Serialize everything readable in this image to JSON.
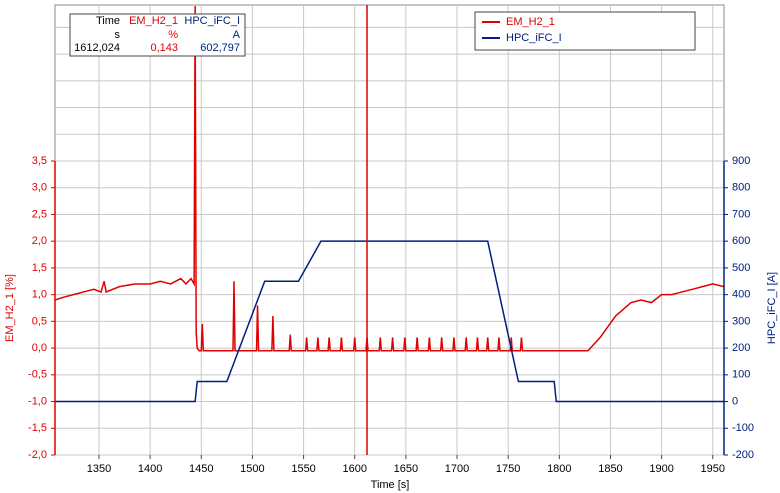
{
  "chart_data": {
    "type": "line",
    "xlabel": "Time [s]",
    "ylabel": "EM_H2_1 [%]",
    "y2label": "HPC_iFC_I [A]",
    "xlim": [
      1307,
      1961
    ],
    "xticks": [
      1350,
      1400,
      1450,
      1500,
      1550,
      1600,
      1650,
      1700,
      1750,
      1800,
      1850,
      1900,
      1950
    ],
    "ylim": [
      -2.0,
      3.5
    ],
    "yticks": [
      {
        "value": 3.5,
        "label": "3,5"
      },
      {
        "value": 3.0,
        "label": "3,0"
      },
      {
        "value": 2.5,
        "label": "2,5"
      },
      {
        "value": 2.0,
        "label": "2,0"
      },
      {
        "value": 1.5,
        "label": "1,5"
      },
      {
        "value": 1.0,
        "label": "1,0"
      },
      {
        "value": 0.5,
        "label": "0,5"
      },
      {
        "value": 0.0,
        "label": "0,0"
      },
      {
        "value": -0.5,
        "label": "-0,5"
      },
      {
        "value": -1.0,
        "label": "-1,0"
      },
      {
        "value": -1.5,
        "label": "-1,5"
      },
      {
        "value": -2.0,
        "label": "-2,0"
      }
    ],
    "y2lim": [
      -200,
      900
    ],
    "y2ticks": [
      900,
      800,
      700,
      600,
      500,
      400,
      300,
      200,
      100,
      0,
      -100,
      -200
    ],
    "grid": true,
    "legend": "upper right",
    "series": [
      {
        "name": "EM_H2_1",
        "color": "#e00000",
        "x": [
          1307,
          1315,
          1325,
          1335,
          1345,
          1352,
          1355,
          1357,
          1370,
          1385,
          1400,
          1410,
          1420,
          1430,
          1435,
          1440,
          1443,
          1444,
          1445,
          1446,
          1448,
          1450,
          1451,
          1452,
          1481,
          1482,
          1483,
          1504,
          1505,
          1506,
          1519,
          1520,
          1521,
          1536,
          1537,
          1538,
          1552,
          1553,
          1554,
          1563,
          1564,
          1565,
          1574,
          1575,
          1576,
          1586,
          1587,
          1588,
          1599,
          1600,
          1601,
          1611,
          1612,
          1613,
          1624,
          1625,
          1626,
          1636,
          1637,
          1638,
          1648,
          1649,
          1650,
          1660,
          1661,
          1662,
          1672,
          1673,
          1674,
          1684,
          1685,
          1686,
          1696,
          1697,
          1698,
          1708,
          1709,
          1710,
          1719,
          1720,
          1721,
          1729,
          1730,
          1731,
          1740,
          1741,
          1742,
          1752,
          1753,
          1754,
          1762,
          1763,
          1764,
          1828,
          1840,
          1855,
          1870,
          1880,
          1890,
          1900,
          1910,
          1920,
          1930,
          1940,
          1950,
          1961
        ],
        "values": [
          0.9,
          0.95,
          1.0,
          1.05,
          1.1,
          1.05,
          1.25,
          1.05,
          1.15,
          1.2,
          1.2,
          1.25,
          1.2,
          1.3,
          1.2,
          1.3,
          1.2,
          6.4,
          0.3,
          0.0,
          -0.05,
          -0.05,
          0.45,
          -0.05,
          -0.05,
          1.25,
          -0.05,
          -0.05,
          0.8,
          -0.05,
          -0.05,
          0.6,
          -0.05,
          -0.05,
          0.25,
          -0.05,
          -0.05,
          0.2,
          -0.05,
          -0.05,
          0.2,
          -0.05,
          -0.05,
          0.2,
          -0.05,
          -0.05,
          0.2,
          -0.05,
          -0.05,
          0.2,
          -0.05,
          -0.05,
          0.2,
          -0.05,
          -0.05,
          0.2,
          -0.05,
          -0.05,
          0.2,
          -0.05,
          -0.05,
          0.2,
          -0.05,
          -0.05,
          0.2,
          -0.05,
          -0.05,
          0.2,
          -0.05,
          -0.05,
          0.2,
          -0.05,
          -0.05,
          0.2,
          -0.05,
          -0.05,
          0.2,
          -0.05,
          -0.05,
          0.2,
          -0.05,
          -0.05,
          0.2,
          -0.05,
          -0.05,
          0.2,
          -0.05,
          -0.05,
          0.2,
          -0.05,
          -0.05,
          0.2,
          -0.05,
          -0.05,
          0.2,
          0.6,
          0.85,
          0.9,
          0.85,
          1.0,
          1.0,
          1.05,
          1.1,
          1.15,
          1.2,
          1.15
        ]
      },
      {
        "name": "HPC_iFC_I",
        "color": "#00207f",
        "axis": "y2",
        "x": [
          1307,
          1444,
          1446,
          1475,
          1512,
          1545,
          1567,
          1730,
          1760,
          1795,
          1797,
          1961
        ],
        "values": [
          0,
          0,
          75,
          75,
          450,
          450,
          600,
          600,
          75,
          75,
          0,
          0
        ]
      }
    ],
    "cursor_table": {
      "header": [
        "Time",
        "EM_H2_1",
        "HPC_iFC_I"
      ],
      "units": [
        "s",
        "%",
        "A"
      ],
      "values": [
        {
          "value": 1612.024,
          "label": "1612,024"
        },
        {
          "value": 0.143,
          "label": "0,143"
        },
        {
          "value": 602.797,
          "label": "602,797"
        }
      ]
    }
  }
}
